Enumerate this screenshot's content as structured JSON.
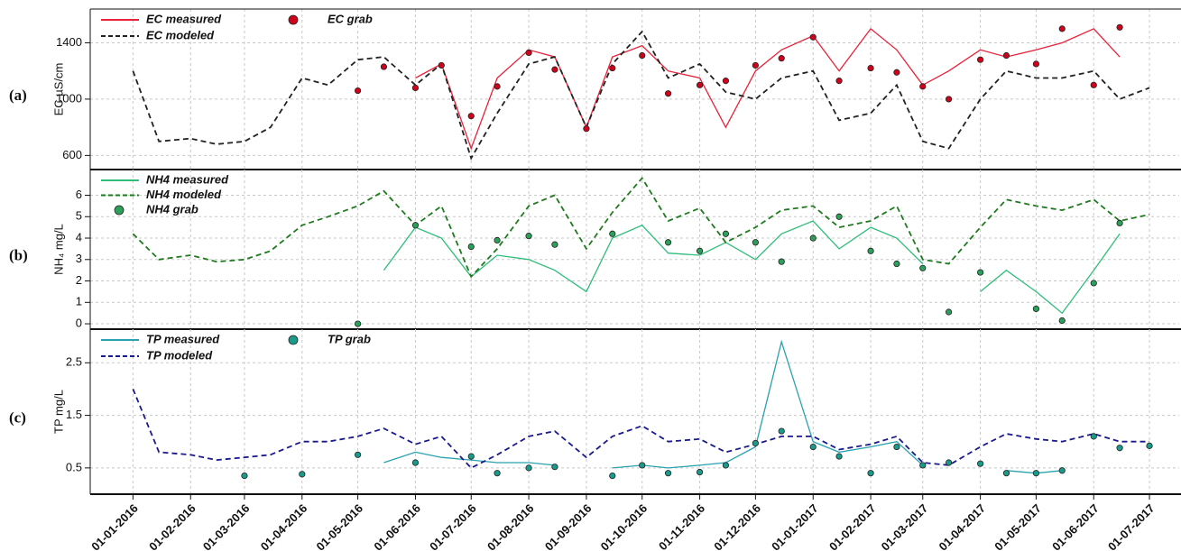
{
  "chart_data": [
    {
      "type": "line",
      "panel_label": "(a)",
      "ylabel": "EC µS/cm",
      "legend_ncol": 2,
      "grid": true,
      "ylim": [
        500,
        1640
      ],
      "yticks": [
        600,
        1000,
        1400
      ],
      "xlim": [
        "09-12-2015",
        "17-07-2017"
      ],
      "x": [
        "01-01-2016",
        "15-01-2016",
        "01-02-2016",
        "15-02-2016",
        "01-03-2016",
        "15-03-2016",
        "01-04-2016",
        "15-04-2016",
        "01-05-2016",
        "15-05-2016",
        "01-06-2016",
        "15-06-2016",
        "01-07-2016",
        "15-07-2016",
        "01-08-2016",
        "15-08-2016",
        "01-09-2016",
        "15-09-2016",
        "01-10-2016",
        "15-10-2016",
        "01-11-2016",
        "15-11-2016",
        "01-12-2016",
        "15-12-2016",
        "01-01-2017",
        "15-01-2017",
        "01-02-2017",
        "15-02-2017",
        "01-03-2017",
        "15-03-2017",
        "01-04-2017",
        "15-04-2017",
        "01-05-2017",
        "15-05-2017",
        "01-06-2017",
        "15-06-2017",
        "01-07-2017"
      ],
      "series": [
        {
          "name": "EC measured",
          "color": "#e8223a",
          "mode": "lines",
          "dash": false,
          "values": [
            null,
            null,
            null,
            null,
            null,
            null,
            null,
            null,
            null,
            null,
            1150,
            1250,
            650,
            1150,
            1350,
            1300,
            800,
            1300,
            1380,
            1200,
            1150,
            800,
            1200,
            1350,
            1450,
            1200,
            1500,
            1350,
            1100,
            1200,
            1350,
            1300,
            1350,
            1400,
            1500,
            1300,
            null
          ]
        },
        {
          "name": "EC modeled",
          "color": "#222222",
          "mode": "lines",
          "dash": true,
          "values": [
            1200,
            700,
            720,
            680,
            700,
            800,
            1150,
            1100,
            1280,
            1300,
            1100,
            1250,
            580,
            900,
            1250,
            1300,
            800,
            1250,
            1480,
            1150,
            1250,
            1050,
            1000,
            1150,
            1200,
            850,
            900,
            1100,
            700,
            650,
            1000,
            1200,
            1150,
            1150,
            1200,
            1000,
            1080
          ]
        },
        {
          "name": "EC grab",
          "color": "#d0021b",
          "mode": "markers",
          "dash": false,
          "values": [
            null,
            null,
            null,
            null,
            null,
            null,
            null,
            null,
            1060,
            1230,
            1080,
            1240,
            880,
            1090,
            1330,
            1210,
            790,
            1220,
            1310,
            1040,
            1100,
            1130,
            1240,
            1290,
            1440,
            1130,
            1220,
            1190,
            1090,
            1000,
            1280,
            1310,
            1250,
            1500,
            1100,
            1510,
            null
          ]
        }
      ]
    },
    {
      "type": "line",
      "panel_label": "(b)",
      "ylabel": "NH₄ mg/L",
      "legend_ncol": 1,
      "grid": true,
      "ylim": [
        -0.25,
        7.2
      ],
      "yticks": [
        0,
        1,
        2,
        3,
        4,
        5,
        6
      ],
      "xlim": [
        "09-12-2015",
        "17-07-2017"
      ],
      "x": [
        "01-01-2016",
        "15-01-2016",
        "01-02-2016",
        "15-02-2016",
        "01-03-2016",
        "15-03-2016",
        "01-04-2016",
        "15-04-2016",
        "01-05-2016",
        "15-05-2016",
        "01-06-2016",
        "15-06-2016",
        "01-07-2016",
        "15-07-2016",
        "01-08-2016",
        "15-08-2016",
        "01-09-2016",
        "15-09-2016",
        "01-10-2016",
        "15-10-2016",
        "01-11-2016",
        "15-11-2016",
        "01-12-2016",
        "15-12-2016",
        "01-01-2017",
        "15-01-2017",
        "01-02-2017",
        "15-02-2017",
        "01-03-2017",
        "15-03-2017",
        "01-04-2017",
        "15-04-2017",
        "01-05-2017",
        "15-05-2017",
        "01-06-2017",
        "15-06-2017",
        "01-07-2017"
      ],
      "series": [
        {
          "name": "NH4 measured",
          "color": "#2ebd7a",
          "mode": "lines",
          "dash": false,
          "values": [
            null,
            null,
            null,
            null,
            null,
            null,
            null,
            null,
            null,
            2.5,
            4.5,
            4.0,
            2.2,
            3.2,
            3.0,
            2.5,
            1.5,
            4.0,
            4.6,
            3.3,
            3.2,
            3.8,
            3.0,
            4.2,
            4.8,
            3.5,
            4.5,
            4.0,
            2.8,
            null,
            1.5,
            2.5,
            1.5,
            0.5,
            2.5,
            4.2,
            null
          ]
        },
        {
          "name": "NH4 modeled",
          "color": "#1f7a1f",
          "mode": "lines",
          "dash": true,
          "values": [
            4.2,
            3.0,
            3.2,
            2.9,
            3.0,
            3.4,
            4.6,
            5.0,
            5.5,
            6.2,
            4.6,
            5.5,
            2.2,
            3.5,
            5.5,
            6.0,
            3.5,
            5.2,
            6.8,
            4.8,
            5.4,
            3.8,
            4.5,
            5.3,
            5.5,
            4.5,
            4.8,
            5.5,
            3.0,
            2.8,
            4.5,
            5.8,
            5.5,
            5.3,
            5.8,
            4.8,
            5.1
          ]
        },
        {
          "name": "NH4 grab",
          "color": "#2ca05a",
          "mode": "markers",
          "dash": false,
          "values": [
            null,
            null,
            null,
            null,
            null,
            null,
            null,
            null,
            0.0,
            null,
            4.6,
            null,
            3.6,
            3.9,
            4.1,
            3.7,
            null,
            4.2,
            null,
            3.8,
            3.4,
            4.2,
            3.8,
            2.9,
            4.0,
            5.0,
            3.4,
            2.8,
            2.6,
            0.55,
            2.4,
            null,
            0.7,
            0.15,
            1.9,
            4.7,
            null
          ]
        }
      ]
    },
    {
      "type": "line",
      "panel_label": "(c)",
      "ylabel": "TP mg/L",
      "legend_ncol": 2,
      "grid": true,
      "ylim": [
        0,
        3.14
      ],
      "yticks": [
        0.5,
        1.5,
        2.5
      ],
      "xlim": [
        "09-12-2015",
        "17-07-2017"
      ],
      "xticks": [
        "01-01-2016",
        "01-02-2016",
        "01-03-2016",
        "01-04-2016",
        "01-05-2016",
        "01-06-2016",
        "01-07-2016",
        "01-08-2016",
        "01-09-2016",
        "01-10-2016",
        "01-11-2016",
        "01-12-2016",
        "01-01-2017",
        "01-02-2017",
        "01-03-2017",
        "01-04-2017",
        "01-05-2017",
        "01-06-2017",
        "01-07-2017"
      ],
      "x": [
        "01-01-2016",
        "15-01-2016",
        "01-02-2016",
        "15-02-2016",
        "01-03-2016",
        "15-03-2016",
        "01-04-2016",
        "15-04-2016",
        "01-05-2016",
        "15-05-2016",
        "01-06-2016",
        "15-06-2016",
        "01-07-2016",
        "15-07-2016",
        "01-08-2016",
        "15-08-2016",
        "01-09-2016",
        "15-09-2016",
        "01-10-2016",
        "15-10-2016",
        "01-11-2016",
        "15-11-2016",
        "01-12-2016",
        "15-12-2016",
        "01-01-2017",
        "15-01-2017",
        "01-02-2017",
        "15-02-2017",
        "01-03-2017",
        "15-03-2017",
        "01-04-2017",
        "15-04-2017",
        "01-05-2017",
        "15-05-2017",
        "01-06-2017",
        "15-06-2017",
        "01-07-2017"
      ],
      "series": [
        {
          "name": "TP measured",
          "color": "#2aa1b0",
          "mode": "lines",
          "dash": false,
          "values": [
            null,
            null,
            null,
            null,
            null,
            null,
            null,
            null,
            null,
            0.6,
            0.8,
            0.7,
            0.65,
            0.6,
            0.6,
            0.55,
            null,
            0.5,
            0.55,
            0.5,
            0.55,
            0.6,
            0.9,
            2.9,
            1.0,
            0.8,
            0.9,
            1.0,
            0.55,
            null,
            null,
            0.45,
            0.4,
            0.45,
            null,
            null,
            null
          ]
        },
        {
          "name": "TP modeled",
          "color": "#1a1a8c",
          "mode": "lines",
          "dash": true,
          "values": [
            2.0,
            0.8,
            0.75,
            0.65,
            0.7,
            0.75,
            1.0,
            1.0,
            1.1,
            1.25,
            0.95,
            1.1,
            0.5,
            0.75,
            1.1,
            1.2,
            0.7,
            1.1,
            1.3,
            1.0,
            1.05,
            0.8,
            0.95,
            1.1,
            1.1,
            0.85,
            0.95,
            1.1,
            0.6,
            0.55,
            0.9,
            1.15,
            1.05,
            1.0,
            1.15,
            1.0,
            1.0
          ]
        },
        {
          "name": "TP grab",
          "color": "#1a9a8a",
          "mode": "markers",
          "dash": false,
          "values": [
            null,
            null,
            null,
            null,
            0.35,
            null,
            0.38,
            null,
            0.75,
            null,
            0.6,
            null,
            0.72,
            0.4,
            0.5,
            0.52,
            null,
            0.35,
            0.55,
            0.4,
            0.42,
            0.55,
            0.97,
            1.2,
            0.9,
            0.72,
            0.4,
            0.9,
            0.55,
            0.6,
            0.58,
            0.4,
            0.4,
            0.45,
            1.1,
            0.88,
            0.92
          ]
        }
      ]
    }
  ]
}
